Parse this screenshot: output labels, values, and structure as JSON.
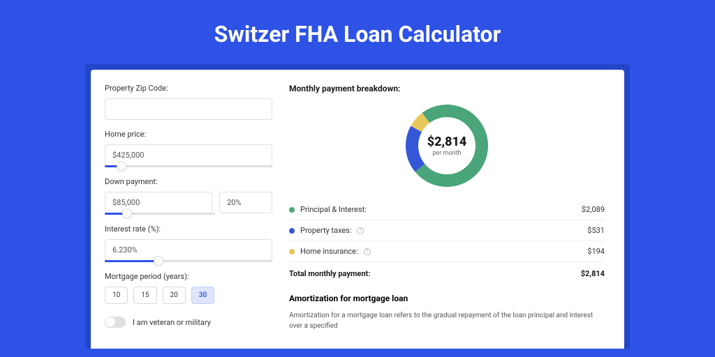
{
  "title": "Switzer FHA Loan Calculator",
  "colors": {
    "page_bg": "#2d52e5",
    "outer_wrap": "#2346c9",
    "card_bg": "#ffffff",
    "slider_fill": "#2d52e5",
    "active_btn_bg": "#dfe6fb"
  },
  "form": {
    "zip": {
      "label": "Property Zip Code:",
      "value": ""
    },
    "home_price": {
      "label": "Home price:",
      "value": "$425,000",
      "slider_pct": 10
    },
    "down_payment": {
      "label": "Down payment:",
      "amount": "$85,000",
      "percent": "20%",
      "slider_pct": 20
    },
    "interest_rate": {
      "label": "Interest rate (%):",
      "value": "6.230%",
      "slider_pct": 32
    },
    "period": {
      "label": "Mortgage period (years):",
      "options": [
        "10",
        "15",
        "20",
        "30"
      ],
      "selected": "30"
    },
    "veteran": {
      "label": "I am veteran or military",
      "on": false
    }
  },
  "breakdown": {
    "title": "Monthly payment breakdown:",
    "donut": {
      "amount": "$2,814",
      "sub": "per month",
      "slices": [
        {
          "key": "pi",
          "pct": 74.2,
          "color": "#4aa57a"
        },
        {
          "key": "tax",
          "pct": 18.9,
          "color": "#3357d6"
        },
        {
          "key": "ins",
          "pct": 6.9,
          "color": "#e9c85a"
        }
      ],
      "size": 118,
      "stroke": 18,
      "rotate": -127
    },
    "items": [
      {
        "dot": "#4aa57a",
        "label": "Principal & Interest:",
        "info": false,
        "value": "$2,089"
      },
      {
        "dot": "#3357d6",
        "label": "Property taxes:",
        "info": true,
        "value": "$531"
      },
      {
        "dot": "#e9c85a",
        "label": "Home insurance:",
        "info": true,
        "value": "$194"
      }
    ],
    "total": {
      "label": "Total monthly payment:",
      "value": "$2,814"
    }
  },
  "amortization": {
    "title": "Amortization for mortgage loan",
    "text": "Amortization for a mortgage loan refers to the gradual repayment of the loan principal and interest over a specified"
  }
}
